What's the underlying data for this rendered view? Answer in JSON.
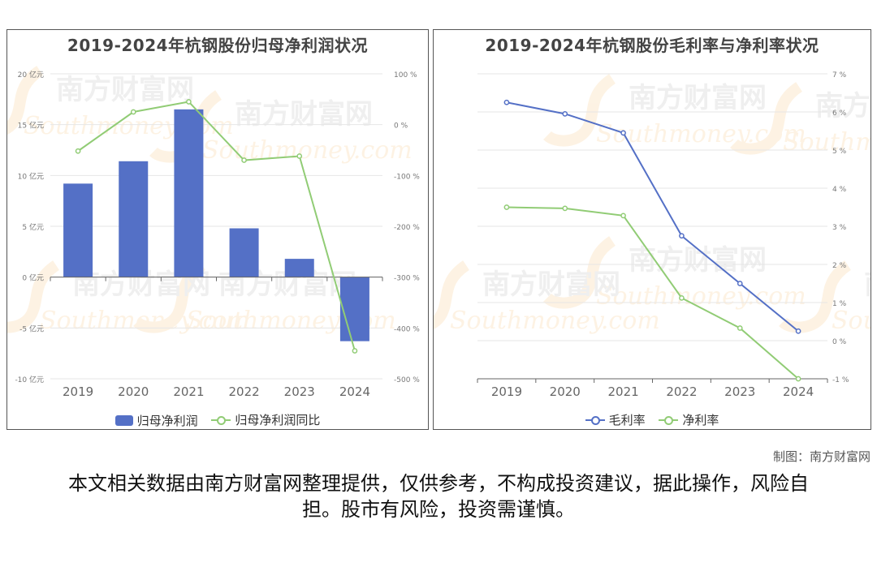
{
  "footer": {
    "credit": "制图：南方财富网",
    "disclaimer": "本文相关数据由南方财富网整理提供，仅供参考，不构成投资建议，据此操作，风险自担。股市有风险，投资需谨慎。"
  },
  "watermark": {
    "cn": "南方财富网",
    "en": "Southmoney.com"
  },
  "colors": {
    "blue": "#5470c6",
    "green": "#91cc75"
  },
  "chart_data": [
    {
      "type": "bar+line",
      "title": "2019-2024年杭钢股份归母净利润状况",
      "categories": [
        "2019",
        "2020",
        "2021",
        "2022",
        "2023",
        "2024"
      ],
      "y_left": {
        "min": -10,
        "max": 20,
        "step": 5,
        "unit": "亿元",
        "ticks": [
          "20 亿元",
          "15 亿元",
          "10 亿元",
          "5 亿元",
          "0 亿元",
          "-5 亿元",
          "-10 亿元"
        ]
      },
      "y_right": {
        "min": -500,
        "max": 100,
        "step": 100,
        "unit": "%",
        "ticks": [
          "100 %",
          "0 %",
          "-100 %",
          "-200 %",
          "-300 %",
          "-400 %",
          "-500 %"
        ]
      },
      "series": [
        {
          "name": "归母净利润",
          "type": "bar",
          "axis": "left",
          "color": "#5470c6",
          "values": [
            9.2,
            11.4,
            16.5,
            4.8,
            1.8,
            -6.3
          ]
        },
        {
          "name": "归母净利润同比",
          "type": "line",
          "axis": "right",
          "color": "#91cc75",
          "values": [
            -52,
            25,
            45,
            -70,
            -62,
            -445
          ]
        }
      ],
      "legend": "bottom-center",
      "grid": true
    },
    {
      "type": "line",
      "title": "2019-2024年杭钢股份毛利率与净利率状况",
      "categories": [
        "2019",
        "2020",
        "2021",
        "2022",
        "2023",
        "2024"
      ],
      "y_right": {
        "min": -1,
        "max": 7,
        "step": 1,
        "unit": "%",
        "ticks": [
          "7 %",
          "6 %",
          "5 %",
          "4 %",
          "3 %",
          "2 %",
          "1 %",
          "0 %",
          "-1 %"
        ]
      },
      "series": [
        {
          "name": "毛利率",
          "type": "line",
          "axis": "right",
          "color": "#5470c6",
          "values": [
            6.25,
            5.95,
            5.45,
            2.75,
            1.5,
            0.25
          ]
        },
        {
          "name": "净利率",
          "type": "line",
          "axis": "right",
          "color": "#91cc75",
          "values": [
            3.5,
            3.47,
            3.28,
            1.12,
            0.33,
            -1.0
          ]
        }
      ],
      "legend": "bottom-center",
      "grid": true
    }
  ]
}
